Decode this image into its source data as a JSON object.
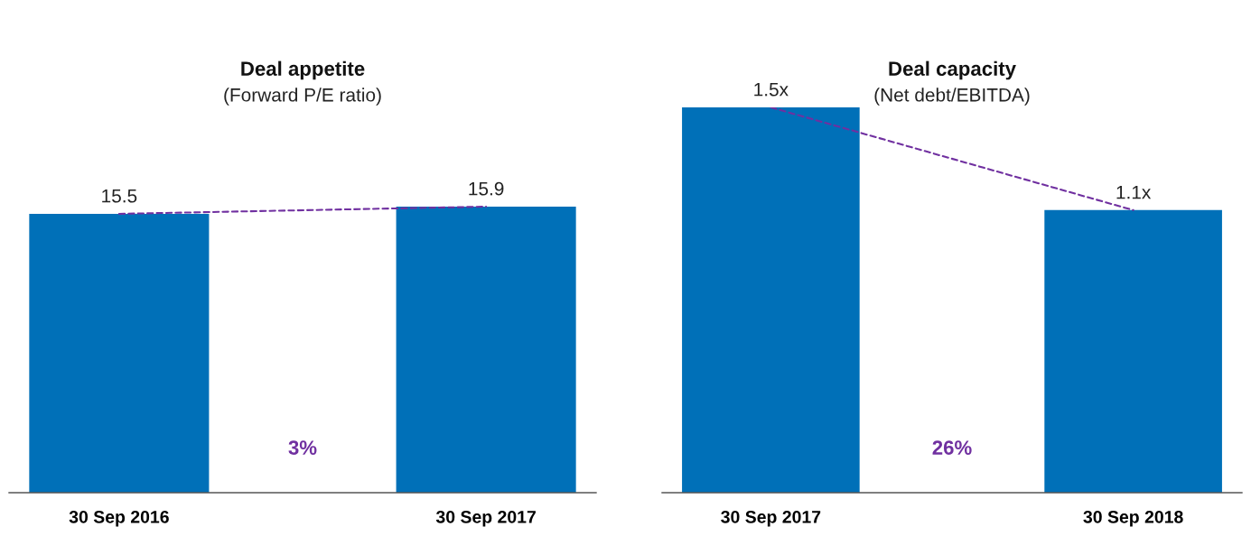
{
  "chart_data": [
    {
      "type": "bar",
      "title": "Deal appetite",
      "subtitle": "(Forward P/E ratio)",
      "categories": [
        "30 Sep 2016",
        "30 Sep 2017"
      ],
      "tick_labels": "x",
      "series": [
        {
          "color": "#0070b8",
          "values": [
            15.5,
            15.9
          ],
          "value_labels": [
            "15.5",
            "15.9"
          ]
        },
        {
          "type": "line",
          "color": "#7030a0",
          "line_style": "dashed",
          "marker": "none",
          "values": [
            15.5,
            15.9
          ]
        }
      ],
      "annotations": [
        "3%"
      ]
    },
    {
      "type": "bar",
      "title": "Deal capacity",
      "subtitle": "(Net debt/EBITDA)",
      "categories": [
        "30 Sep 2017",
        "30 Sep 2018"
      ],
      "tick_labels": "x",
      "series": [
        {
          "color": "#0070b8",
          "values": [
            1.5,
            1.1
          ],
          "value_labels": [
            "1.5x",
            "1.1x"
          ]
        },
        {
          "type": "line",
          "color": "#7030a0",
          "line_style": "dashed",
          "marker": "none",
          "values": [
            1.5,
            1.1
          ]
        }
      ],
      "annotations": [
        "26%"
      ]
    }
  ]
}
